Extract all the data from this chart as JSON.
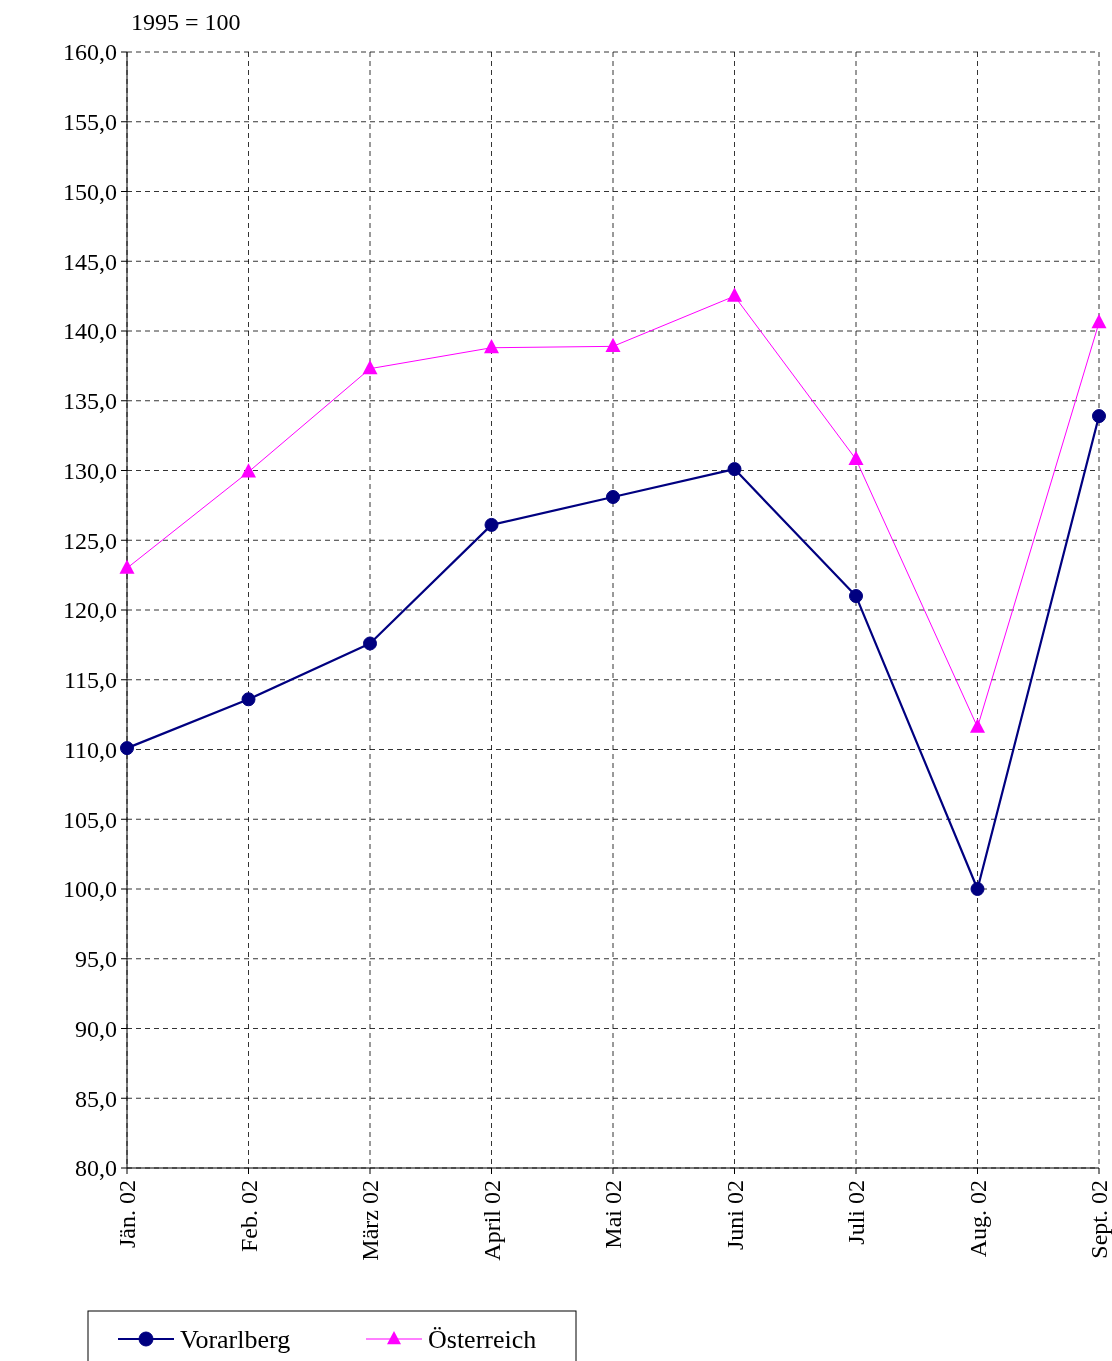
{
  "chart_data": {
    "type": "line",
    "ylabel": "1995 = 100",
    "categories": [
      "Jän. 02",
      "Feb. 02",
      "März 02",
      "April 02",
      "Mai 02",
      "Juni 02",
      "Juli 02",
      "Aug. 02",
      "Sept. 02"
    ],
    "series": [
      {
        "name": "Vorarlberg",
        "color": "#000080",
        "marker": "circle",
        "values": [
          110.1,
          113.6,
          117.6,
          126.1,
          128.1,
          130.1,
          121.0,
          100.0,
          133.9
        ]
      },
      {
        "name": "Österreich",
        "color": "#ff00ff",
        "marker": "triangle",
        "values": [
          123.0,
          129.9,
          137.3,
          138.8,
          138.9,
          142.5,
          130.8,
          111.6,
          140.6
        ]
      }
    ],
    "ylim": [
      80,
      160
    ],
    "yticks": [
      {
        "value": 80,
        "label": "80,0"
      },
      {
        "value": 85,
        "label": "85,0"
      },
      {
        "value": 90,
        "label": "90,0"
      },
      {
        "value": 95,
        "label": "95,0"
      },
      {
        "value": 100,
        "label": "100,0"
      },
      {
        "value": 105,
        "label": "105,0"
      },
      {
        "value": 110,
        "label": "110,0"
      },
      {
        "value": 115,
        "label": "115,0"
      },
      {
        "value": 120,
        "label": "120,0"
      },
      {
        "value": 125,
        "label": "125,0"
      },
      {
        "value": 130,
        "label": "130,0"
      },
      {
        "value": 135,
        "label": "135,0"
      },
      {
        "value": 140,
        "label": "140,0"
      },
      {
        "value": 145,
        "label": "145,0"
      },
      {
        "value": 150,
        "label": "150,0"
      },
      {
        "value": 155,
        "label": "155,0"
      },
      {
        "value": 160,
        "label": "160,0"
      }
    ],
    "grid": true,
    "legend": "bottom",
    "line_style": "solid"
  }
}
